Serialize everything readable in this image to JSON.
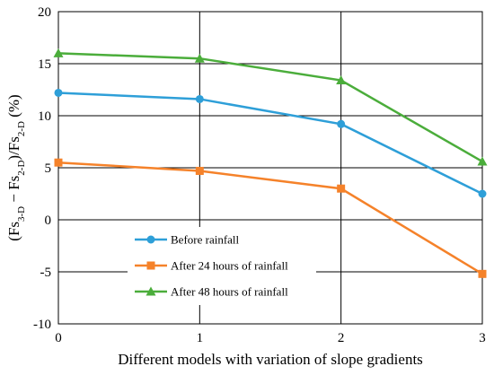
{
  "chart_data": {
    "type": "line",
    "x": [
      0,
      1,
      2,
      3
    ],
    "xlim": [
      0,
      3
    ],
    "ylim": [
      -10,
      20
    ],
    "x_ticks": [
      "0",
      "1",
      "2",
      "3"
    ],
    "y_ticks": [
      "20",
      "15",
      "10",
      "5",
      "0",
      "-5",
      "-10"
    ],
    "xlabel": "Different models with variation of slope gradients",
    "ylabel": {
      "open": "(Fs",
      "sub1": "3-D",
      "minus": " − Fs",
      "sub2": "2-D",
      "mid": ")/Fs",
      "sub3": "2-D",
      "unit": " (%)"
    },
    "grid": true,
    "legend_position": "lower-left",
    "series": [
      {
        "name": "Before rainfall",
        "color": "#2e9fd8",
        "marker": "circle",
        "values": [
          12.2,
          11.6,
          9.2,
          2.5
        ]
      },
      {
        "name": "After 24 hours of rainfall",
        "color": "#f5822a",
        "marker": "square",
        "values": [
          5.5,
          4.7,
          3.0,
          -5.2
        ]
      },
      {
        "name": "After 48 hours of rainfall",
        "color": "#4bad3b",
        "marker": "triangle",
        "values": [
          16.0,
          15.5,
          13.4,
          5.6
        ]
      }
    ]
  }
}
